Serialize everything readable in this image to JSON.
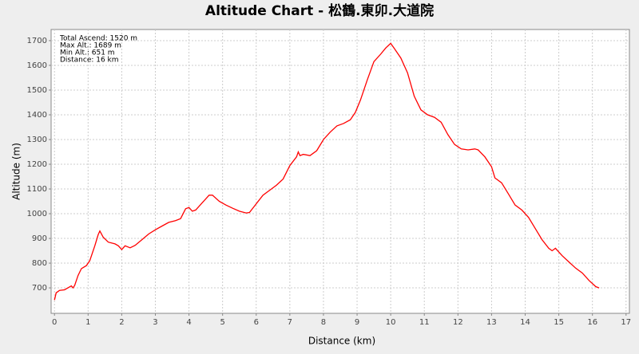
{
  "chart_data": {
    "type": "line",
    "title": "Altitude Chart - 松鶴.東卯.大道院",
    "x_label": "Distance (km)",
    "y_label": "Altitude (m)",
    "annotations": [
      "Total Ascend: 1520 m",
      "Max Alt.: 1689 m",
      "Min Alt.: 651 m",
      "Distance: 16 km"
    ],
    "color": "#ff0000",
    "grid": true,
    "xlim": [
      -0.1,
      17.1
    ],
    "xticks": [
      0,
      1,
      2,
      3,
      4,
      5,
      6,
      7,
      8,
      9,
      10,
      11,
      12,
      13,
      14,
      15,
      16,
      17
    ],
    "ylim": [
      597,
      1745
    ],
    "yticks": [
      700,
      800,
      900,
      1000,
      1100,
      1200,
      1300,
      1400,
      1500,
      1600,
      1700
    ],
    "x": [
      0,
      0.05,
      0.15,
      0.3,
      0.4,
      0.5,
      0.55,
      0.6,
      0.7,
      0.8,
      0.95,
      1.05,
      1.2,
      1.3,
      1.35,
      1.45,
      1.6,
      1.8,
      1.9,
      2.0,
      2.1,
      2.25,
      2.4,
      2.6,
      2.8,
      3.0,
      3.2,
      3.4,
      3.6,
      3.75,
      3.9,
      4.0,
      4.1,
      4.2,
      4.4,
      4.6,
      4.7,
      4.9,
      5.1,
      5.3,
      5.5,
      5.7,
      5.8,
      6.0,
      6.2,
      6.4,
      6.6,
      6.8,
      7.0,
      7.2,
      7.25,
      7.3,
      7.4,
      7.6,
      7.8,
      8.0,
      8.2,
      8.4,
      8.6,
      8.8,
      8.95,
      9.1,
      9.3,
      9.5,
      9.7,
      9.85,
      10.0,
      10.1,
      10.3,
      10.5,
      10.7,
      10.9,
      11.1,
      11.3,
      11.5,
      11.7,
      11.9,
      12.1,
      12.3,
      12.5,
      12.6,
      12.8,
      13.0,
      13.1,
      13.3,
      13.5,
      13.7,
      13.9,
      14.1,
      14.3,
      14.5,
      14.7,
      14.8,
      14.9,
      15.1,
      15.3,
      15.5,
      15.7,
      15.9,
      16.1,
      16.2
    ],
    "values": [
      651,
      680,
      690,
      692,
      700,
      708,
      700,
      710,
      750,
      778,
      790,
      810,
      870,
      915,
      930,
      905,
      885,
      878,
      870,
      855,
      870,
      862,
      872,
      895,
      918,
      935,
      950,
      965,
      972,
      980,
      1020,
      1025,
      1010,
      1015,
      1045,
      1075,
      1075,
      1050,
      1035,
      1022,
      1010,
      1003,
      1005,
      1040,
      1075,
      1095,
      1115,
      1140,
      1195,
      1230,
      1250,
      1235,
      1240,
      1235,
      1255,
      1300,
      1330,
      1355,
      1365,
      1380,
      1410,
      1460,
      1540,
      1615,
      1645,
      1670,
      1689,
      1670,
      1630,
      1570,
      1475,
      1420,
      1400,
      1390,
      1370,
      1320,
      1280,
      1262,
      1258,
      1262,
      1258,
      1230,
      1190,
      1145,
      1125,
      1080,
      1035,
      1015,
      985,
      940,
      895,
      860,
      850,
      860,
      830,
      805,
      780,
      760,
      730,
      705,
      700
    ]
  }
}
